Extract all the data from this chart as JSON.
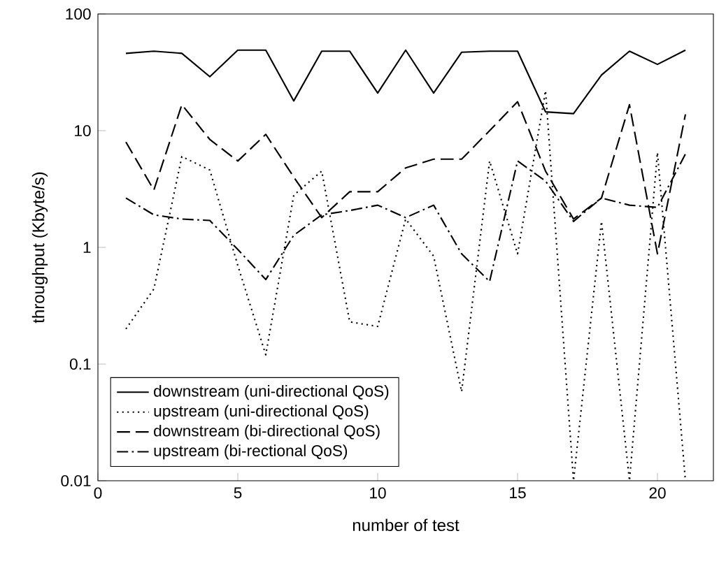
{
  "chart_data": {
    "type": "line",
    "xlabel": "number of test",
    "ylabel": "throughput (Kbyte/s)",
    "log": "y",
    "xlim": [
      0,
      22
    ],
    "xticks": [
      0,
      5,
      10,
      15,
      20
    ],
    "ylim": [
      0.01,
      100
    ],
    "yticks": [
      0.01,
      0.1,
      1,
      10,
      100
    ],
    "legend": "bottom left",
    "grid": false,
    "marker": "none",
    "x": [
      1,
      2,
      3,
      4,
      5,
      6,
      7,
      8,
      9,
      10,
      11,
      12,
      13,
      14,
      15,
      16,
      17,
      18,
      19,
      20,
      21
    ],
    "series": [
      {
        "name": "downstream (uni-directional QoS)",
        "color": "#000000",
        "line_style": "solid",
        "values": [
          46,
          48,
          46,
          29,
          49,
          49,
          18,
          48,
          48,
          21,
          49,
          21,
          47,
          48,
          48,
          14.5,
          14,
          30,
          48,
          37,
          49
        ]
      },
      {
        "name": "upstream (uni-directional QoS)",
        "color": "#000000",
        "line_style": "dotted",
        "values": [
          0.2,
          0.44,
          6,
          4.6,
          0.7,
          0.12,
          2.8,
          4.5,
          0.23,
          0.21,
          1.75,
          0.84,
          0.058,
          5.5,
          0.88,
          22,
          0.01,
          1.67,
          0.01,
          6.5,
          0.01
        ]
      },
      {
        "name": "downstream (bi-directional QoS)",
        "color": "#000000",
        "line_style": "dashed",
        "values": [
          8,
          3.1,
          16.7,
          8.4,
          5.5,
          9.3,
          4,
          1.8,
          3,
          3,
          4.8,
          5.7,
          5.7,
          10,
          17.7,
          4.5,
          1.75,
          2.65,
          16.7,
          0.88,
          13.8
        ]
      },
      {
        "name": "upstream (bi-rectional QoS)",
        "color": "#000000",
        "line_style": "dashdot",
        "values": [
          2.65,
          1.9,
          1.75,
          1.7,
          0.96,
          0.53,
          1.27,
          1.9,
          2.07,
          2.3,
          1.8,
          2.3,
          0.88,
          0.51,
          5.5,
          3.7,
          1.67,
          2.65,
          2.3,
          2.2,
          6.3
        ]
      }
    ]
  }
}
